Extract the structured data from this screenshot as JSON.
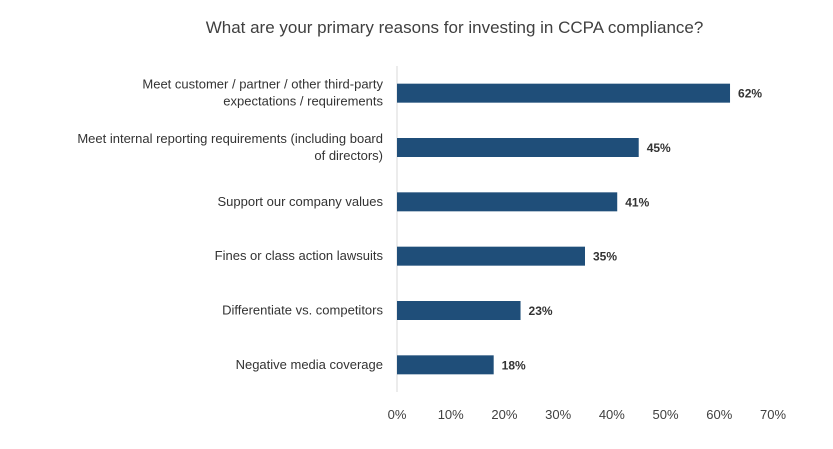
{
  "chart_data": {
    "type": "bar",
    "orientation": "horizontal",
    "title": "What are your primary reasons for investing in CCPA compliance?",
    "categories": [
      "Meet customer / partner / other third-party expectations / requirements",
      "Meet internal reporting requirements (including board of directors)",
      "Support our company values",
      "Fines or class action lawsuits",
      "Differentiate vs. competitors",
      "Negative media coverage"
    ],
    "category_lines": [
      [
        "Meet customer / partner / other third-party",
        "expectations / requirements"
      ],
      [
        "Meet internal reporting requirements (including board",
        "of directors)"
      ],
      [
        "Support our company values"
      ],
      [
        "Fines or class action lawsuits"
      ],
      [
        "Differentiate vs. competitors"
      ],
      [
        "Negative media coverage"
      ]
    ],
    "values": [
      62,
      45,
      41,
      35,
      23,
      18
    ],
    "data_labels": [
      "62%",
      "45%",
      "41%",
      "35%",
      "23%",
      "18%"
    ],
    "xlim": [
      0,
      70
    ],
    "x_ticks": [
      "0%",
      "10%",
      "20%",
      "30%",
      "40%",
      "50%",
      "60%",
      "70%"
    ],
    "bar_color": "#1f4e79",
    "grid": true,
    "legend": "none"
  }
}
